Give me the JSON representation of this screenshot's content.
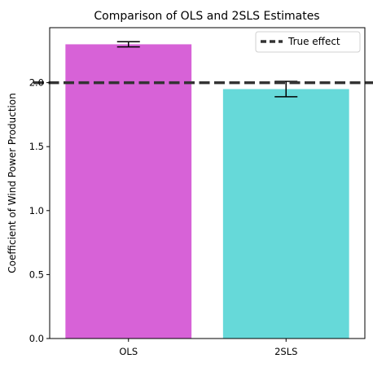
{
  "chart_data": {
    "type": "bar",
    "title": "Comparison of OLS and 2SLS Estimates",
    "xlabel": "",
    "ylabel": "Coefficient of Wind Power Production",
    "categories": [
      "OLS",
      "2SLS"
    ],
    "values": [
      2.3,
      1.95
    ],
    "error_low": [
      2.28,
      1.89
    ],
    "error_high": [
      2.32,
      2.01
    ],
    "bar_colors": [
      "#d762d7",
      "#66d9d9"
    ],
    "ylim": [
      0,
      2.43
    ],
    "yticks": [
      0.0,
      0.5,
      1.0,
      1.5,
      2.0
    ],
    "ytick_labels": [
      "0.0",
      "0.5",
      "1.0",
      "1.5",
      "2.0"
    ],
    "reference_line": {
      "value": 2.0,
      "label": "True effect",
      "color": "#333333",
      "style": "dashed"
    },
    "legend": {
      "placement": "top-right",
      "entries": [
        "True effect"
      ]
    },
    "grid": false
  }
}
